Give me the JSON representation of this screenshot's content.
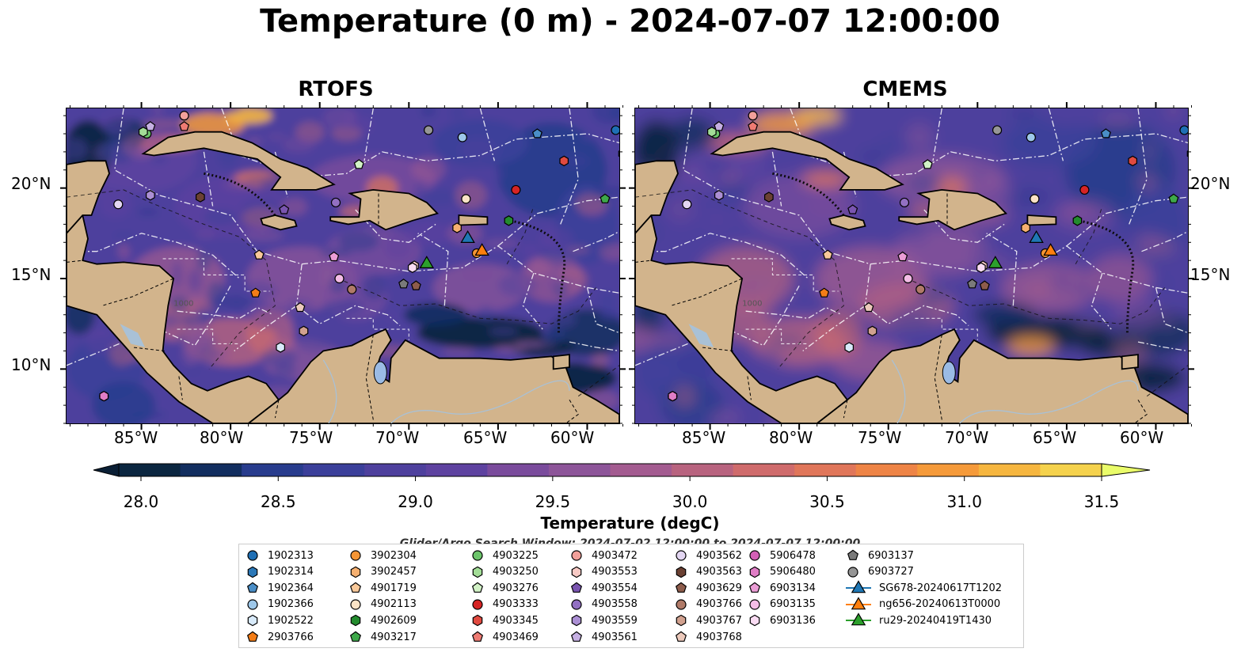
{
  "title": "Temperature (0 m) - 2024-07-07 12:00:00",
  "panels": [
    {
      "name": "RTOFS",
      "scheme": "rtofs"
    },
    {
      "name": "CMEMS",
      "scheme": "cmems"
    }
  ],
  "lon_labels": [
    "85°W",
    "80°W",
    "75°W",
    "70°W",
    "65°W",
    "60°W"
  ],
  "lat_labels": [
    "20°N",
    "15°N",
    "10°N"
  ],
  "colorbar": {
    "label": "Temperature (degC)",
    "ticks": [
      "28.0",
      "28.5",
      "29.0",
      "29.5",
      "30.0",
      "30.5",
      "31.0",
      "31.5"
    ],
    "colors": [
      "#0b2640",
      "#122e5f",
      "#283c8d",
      "#3b3f9a",
      "#4e409d",
      "#5e42a0",
      "#7a4b9c",
      "#8d5599",
      "#a35b90",
      "#b8637f",
      "#cf6b6c",
      "#e0765a",
      "#ee8446",
      "#f59a3a",
      "#f6b63f",
      "#f5d24d"
    ],
    "under_color": "#0a1f35",
    "over_color": "#eafc6a"
  },
  "search_window": "Glider/Argo Search Window: 2024-07-02 12:00:00 to 2024-07-07 12:00:00",
  "legend": [
    {
      "label": "1902313",
      "marker": "circle",
      "color": "#1f6fb4"
    },
    {
      "label": "1902314",
      "marker": "hexagon",
      "color": "#2b78b8"
    },
    {
      "label": "1902364",
      "marker": "pentagon",
      "color": "#4a8ec7"
    },
    {
      "label": "1902366",
      "marker": "circle",
      "color": "#9ec8ea"
    },
    {
      "label": "1902522",
      "marker": "hexagon",
      "color": "#d8eafa"
    },
    {
      "label": "2903766",
      "marker": "pentagon",
      "color": "#f47d16"
    },
    {
      "label": "3902304",
      "marker": "circle",
      "color": "#f59534"
    },
    {
      "label": "3902457",
      "marker": "hexagon",
      "color": "#f6b070"
    },
    {
      "label": "4901719",
      "marker": "pentagon",
      "color": "#f9c99a"
    },
    {
      "label": "4902113",
      "marker": "circle",
      "color": "#fbe3c6"
    },
    {
      "label": "4902609",
      "marker": "hexagon",
      "color": "#238b2e"
    },
    {
      "label": "4903217",
      "marker": "pentagon",
      "color": "#3ea84a"
    },
    {
      "label": "4903225",
      "marker": "circle",
      "color": "#6cc46a"
    },
    {
      "label": "4903250",
      "marker": "hexagon",
      "color": "#a3dd97"
    },
    {
      "label": "4903276",
      "marker": "pentagon",
      "color": "#d2f2c6"
    },
    {
      "label": "4903333",
      "marker": "circle",
      "color": "#d62424"
    },
    {
      "label": "4903345",
      "marker": "hexagon",
      "color": "#e14a40"
    },
    {
      "label": "4903469",
      "marker": "pentagon",
      "color": "#ee7b73"
    },
    {
      "label": "4903472",
      "marker": "circle",
      "color": "#f2a09a"
    },
    {
      "label": "4903553",
      "marker": "hexagon",
      "color": "#f8cac5"
    },
    {
      "label": "4903554",
      "marker": "pentagon",
      "color": "#7a55b0"
    },
    {
      "label": "4903558",
      "marker": "circle",
      "color": "#9270c2"
    },
    {
      "label": "4903559",
      "marker": "hexagon",
      "color": "#ab8fd4"
    },
    {
      "label": "4903561",
      "marker": "pentagon",
      "color": "#c6b0e3"
    },
    {
      "label": "4903562",
      "marker": "circle",
      "color": "#e3d6f2"
    },
    {
      "label": "4903563",
      "marker": "hexagon",
      "color": "#6b4133"
    },
    {
      "label": "4903629",
      "marker": "pentagon",
      "color": "#8d5c4b"
    },
    {
      "label": "4903766",
      "marker": "circle",
      "color": "#b07a68"
    },
    {
      "label": "4903767",
      "marker": "hexagon",
      "color": "#d1a18f"
    },
    {
      "label": "4903768",
      "marker": "pentagon",
      "color": "#ecc9bb"
    },
    {
      "label": "5906478",
      "marker": "circle",
      "color": "#d45fb6"
    },
    {
      "label": "5906480",
      "marker": "hexagon",
      "color": "#e07dc6"
    },
    {
      "label": "6903134",
      "marker": "pentagon",
      "color": "#eb9dd6"
    },
    {
      "label": "6903135",
      "marker": "circle",
      "color": "#f4bde6"
    },
    {
      "label": "6903136",
      "marker": "hexagon",
      "color": "#fadcf3"
    },
    {
      "label": "6903137",
      "marker": "pentagon",
      "color": "#7a7a7a"
    },
    {
      "label": "6903727",
      "marker": "circle",
      "color": "#969696"
    },
    {
      "label": "SG678-20240617T1202",
      "marker": "triangle-line",
      "color": "#1f77b4"
    },
    {
      "label": "ng656-20240613T0000",
      "marker": "triangle-line",
      "color": "#ff7f0e"
    },
    {
      "label": "ru29-20240419T1430",
      "marker": "triangle-line",
      "color": "#2ca02c"
    }
  ],
  "observations": [
    {
      "id": "1902313",
      "lon": -58.4,
      "lat": 23.2
    },
    {
      "id": "1902314",
      "lon": -58.0,
      "lat": 21.9
    },
    {
      "id": "1902364",
      "lon": -62.8,
      "lat": 23.0
    },
    {
      "id": "1902366",
      "lon": -67.0,
      "lat": 22.8
    },
    {
      "id": "1902522",
      "lon": -77.2,
      "lat": 11.2
    },
    {
      "id": "2903766",
      "lon": -78.6,
      "lat": 14.2
    },
    {
      "id": "3902304",
      "lon": -66.2,
      "lat": 16.4
    },
    {
      "id": "3902457",
      "lon": -67.3,
      "lat": 17.8
    },
    {
      "id": "4901719",
      "lon": -78.4,
      "lat": 16.3
    },
    {
      "id": "4902113",
      "lon": -66.8,
      "lat": 19.4
    },
    {
      "id": "4902609",
      "lon": -64.4,
      "lat": 18.2
    },
    {
      "id": "4903217",
      "lon": -59.0,
      "lat": 19.4
    },
    {
      "id": "4903225",
      "lon": -84.7,
      "lat": 23.0
    },
    {
      "id": "4903250",
      "lon": -84.9,
      "lat": 23.1
    },
    {
      "id": "4903276",
      "lon": -72.8,
      "lat": 21.3
    },
    {
      "id": "4903333",
      "lon": -64.0,
      "lat": 19.9
    },
    {
      "id": "4903345",
      "lon": -61.3,
      "lat": 21.5
    },
    {
      "id": "4903469",
      "lon": -82.6,
      "lat": 23.4
    },
    {
      "id": "4903472",
      "lon": -82.6,
      "lat": 24.0
    },
    {
      "id": "4903553",
      "lon": -69.7,
      "lat": 15.7
    },
    {
      "id": "4903554",
      "lon": -77.0,
      "lat": 18.8
    },
    {
      "id": "4903558",
      "lon": -74.1,
      "lat": 19.2
    },
    {
      "id": "4903559",
      "lon": -84.5,
      "lat": 19.6
    },
    {
      "id": "4903561",
      "lon": -84.5,
      "lat": 23.4
    },
    {
      "id": "4903562",
      "lon": -86.3,
      "lat": 19.1
    },
    {
      "id": "4903563",
      "lon": -81.7,
      "lat": 19.5
    },
    {
      "id": "4903629",
      "lon": -69.6,
      "lat": 14.6
    },
    {
      "id": "4903766",
      "lon": -73.2,
      "lat": 14.4
    },
    {
      "id": "4903767",
      "lon": -75.9,
      "lat": 12.1
    },
    {
      "id": "4903768",
      "lon": -76.1,
      "lat": 13.4
    },
    {
      "id": "5906478",
      "lon": -87.1,
      "lat": 8.5
    },
    {
      "id": "5906480",
      "lon": -87.1,
      "lat": 8.5
    },
    {
      "id": "6903134",
      "lon": -74.2,
      "lat": 16.2
    },
    {
      "id": "6903135",
      "lon": -73.9,
      "lat": 15.0
    },
    {
      "id": "6903136",
      "lon": -69.8,
      "lat": 15.6
    },
    {
      "id": "6903137",
      "lon": -70.3,
      "lat": 14.7
    },
    {
      "id": "6903727",
      "lon": -68.9,
      "lat": 23.2
    },
    {
      "id": "SG678-20240617T1202",
      "lon": -66.7,
      "lat": 17.2
    },
    {
      "id": "ng656-20240613T0000",
      "lon": -65.9,
      "lat": 16.5
    },
    {
      "id": "ru29-20240419T1430",
      "lon": -69.0,
      "lat": 15.8
    }
  ]
}
